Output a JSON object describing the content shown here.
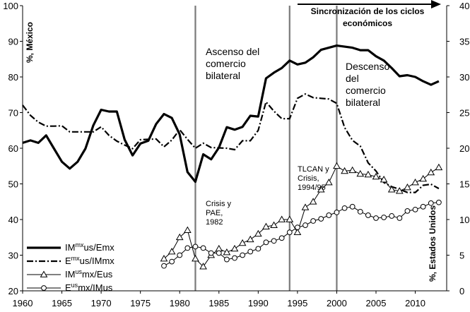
{
  "chart_data": {
    "type": "line",
    "x_range": [
      1960,
      2014
    ],
    "x_ticks": [
      1960,
      1965,
      1970,
      1975,
      1980,
      1985,
      1990,
      1995,
      2000,
      2005,
      2010
    ],
    "left_axis": {
      "label": "%,  México",
      "range": [
        20,
        100
      ],
      "ticks": [
        20,
        30,
        40,
        50,
        60,
        70,
        80,
        90,
        100
      ]
    },
    "right_axis": {
      "label": "%, Estados Unidos",
      "range": [
        0,
        40
      ],
      "ticks": [
        0,
        5,
        10,
        15,
        20,
        25,
        30,
        35,
        40
      ]
    },
    "vlines": [
      1982,
      1994,
      2000
    ],
    "annotations": {
      "ascenso": [
        "Ascenso del",
        "comercio",
        "bilateral"
      ],
      "descenso": [
        "Descenso",
        "del",
        "comercio",
        "bilateral"
      ],
      "sincronizacion": [
        "Sincronización  de los ciclos",
        "económicos"
      ],
      "crisis82": [
        "Crisis y",
        "PAE,",
        "1982"
      ],
      "tlcan": [
        "TLCAN y",
        "Crisis,",
        "1994/95"
      ]
    },
    "legend": [
      {
        "pre": "IM",
        "sup": "mx",
        "post": "us/Emx"
      },
      {
        "pre": "E",
        "sup": "mx",
        "post": "us/IMmx"
      },
      {
        "pre": "IM",
        "sup": "us",
        "post": "mx/Eus"
      },
      {
        "pre": "E",
        "sup": "us",
        "post": "mx/IMus"
      }
    ],
    "series": [
      {
        "name": "IMmxus/Emx",
        "axis": "left",
        "style": "solid-thick",
        "x": [
          1960,
          1961,
          1962,
          1963,
          1964,
          1965,
          1966,
          1967,
          1968,
          1969,
          1970,
          1971,
          1972,
          1973,
          1974,
          1975,
          1976,
          1977,
          1978,
          1979,
          1980,
          1981,
          1982,
          1983,
          1984,
          1985,
          1986,
          1987,
          1988,
          1989,
          1990,
          1991,
          1992,
          1993,
          1994,
          1995,
          1996,
          1997,
          1998,
          1999,
          2000,
          2001,
          2002,
          2003,
          2004,
          2005,
          2006,
          2007,
          2008,
          2009,
          2010,
          2011,
          2012,
          2013
        ],
        "values": [
          61.5,
          62.2,
          61.5,
          63.6,
          59.9,
          56.2,
          54.3,
          56.2,
          59.9,
          66.4,
          70.8,
          70.3,
          70.3,
          62.4,
          58.0,
          61.3,
          62.1,
          66.8,
          69.6,
          68.5,
          63.9,
          53.3,
          50.6,
          58.3,
          56.9,
          60.2,
          65.9,
          65.2,
          66.0,
          69.1,
          68.9,
          79.6,
          81.2,
          82.5,
          84.6,
          83.5,
          84.0,
          85.5,
          87.6,
          88.2,
          88.8,
          88.5,
          88.2,
          87.5,
          87.5,
          85.8,
          84.6,
          82.5,
          80.2,
          80.5,
          80.0,
          78.8,
          77.8,
          78.8
        ]
      },
      {
        "name": "Emxus/IMmx",
        "axis": "left",
        "style": "dashdot",
        "x": [
          1960,
          1961,
          1962,
          1963,
          1964,
          1965,
          1966,
          1967,
          1968,
          1969,
          1970,
          1971,
          1972,
          1973,
          1974,
          1975,
          1976,
          1977,
          1978,
          1979,
          1980,
          1981,
          1982,
          1983,
          1984,
          1985,
          1986,
          1987,
          1988,
          1989,
          1990,
          1991,
          1992,
          1993,
          1994,
          1995,
          1996,
          1997,
          1998,
          1999,
          2000,
          2001,
          2002,
          2003,
          2004,
          2005,
          2006,
          2007,
          2008,
          2009,
          2010,
          2011,
          2012,
          2013
        ],
        "values": [
          72.1,
          69.2,
          67.3,
          66.2,
          66.2,
          66.3,
          64.6,
          64.6,
          64.6,
          64.6,
          66.0,
          63.6,
          62.0,
          60.9,
          59.9,
          62.4,
          62.5,
          62.6,
          60.4,
          62.3,
          65.2,
          62.5,
          60.0,
          61.4,
          60.2,
          60.1,
          60.0,
          59.6,
          62.1,
          62.1,
          65.0,
          73.0,
          70.4,
          68.3,
          68.3,
          74.0,
          75.2,
          74.2,
          74.0,
          73.8,
          72.6,
          65.8,
          62.2,
          60.6,
          55.9,
          53.6,
          50.4,
          49.2,
          48.5,
          47.6,
          47.6,
          49.6,
          49.9,
          48.7
        ]
      },
      {
        "name": "IMusmx/Eus",
        "axis": "right",
        "style": "triangle",
        "x": [
          1978,
          1979,
          1980,
          1981,
          1982,
          1983,
          1984,
          1985,
          1986,
          1987,
          1988,
          1989,
          1990,
          1991,
          1992,
          1993,
          1994,
          1995,
          1996,
          1997,
          1998,
          1999,
          2000,
          2001,
          2002,
          2003,
          2004,
          2005,
          2006,
          2007,
          2008,
          2009,
          2010,
          2011,
          2012,
          2013
        ],
        "values": [
          4.5,
          5.5,
          7.5,
          8.5,
          4.5,
          3.4,
          5.0,
          5.9,
          5.4,
          5.9,
          6.7,
          7.2,
          8.0,
          9.0,
          9.2,
          10.0,
          10.0,
          8.2,
          11.7,
          12.5,
          14.2,
          15.2,
          17.5,
          16.8,
          16.9,
          16.4,
          16.3,
          16.0,
          15.6,
          14.2,
          14.0,
          14.5,
          15.2,
          15.7,
          16.6,
          17.3
        ]
      },
      {
        "name": "Eusmx/IMus",
        "axis": "right",
        "style": "circle",
        "x": [
          1978,
          1979,
          1980,
          1981,
          1982,
          1983,
          1984,
          1985,
          1986,
          1987,
          1988,
          1989,
          1990,
          1991,
          1992,
          1993,
          1994,
          1995,
          1996,
          1997,
          1998,
          1999,
          2000,
          2001,
          2002,
          2003,
          2004,
          2005,
          2006,
          2007,
          2008,
          2009,
          2010,
          2011,
          2012,
          2013
        ],
        "values": [
          3.5,
          4.1,
          5.0,
          6.0,
          6.2,
          6.0,
          5.3,
          5.3,
          4.4,
          4.6,
          5.0,
          5.5,
          5.9,
          6.8,
          7.0,
          7.4,
          8.2,
          8.9,
          9.2,
          9.8,
          10.1,
          10.6,
          11.0,
          11.6,
          11.8,
          11.1,
          10.6,
          10.2,
          10.3,
          10.5,
          10.2,
          11.2,
          11.4,
          11.8,
          12.3,
          12.4
        ]
      }
    ]
  }
}
